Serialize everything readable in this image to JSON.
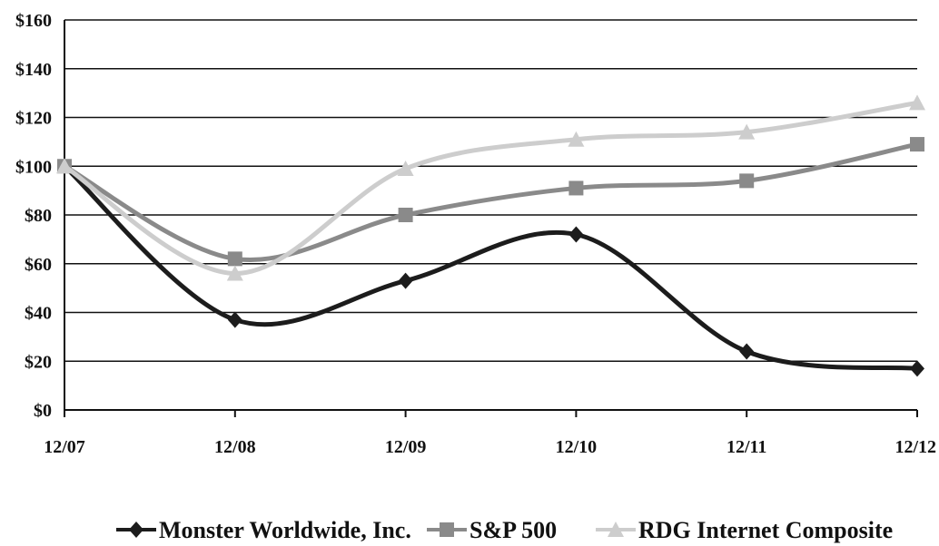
{
  "chart_data": {
    "type": "line",
    "categories": [
      "12/07",
      "12/08",
      "12/09",
      "12/10",
      "12/11",
      "12/12"
    ],
    "series": [
      {
        "name": "Monster Worldwide, Inc.",
        "values": [
          100,
          37,
          53,
          72,
          24,
          17
        ],
        "color": "#1c1c1c",
        "marker": "diamond"
      },
      {
        "name": "S&P 500",
        "values": [
          100,
          62,
          80,
          91,
          94,
          109
        ],
        "color": "#8a8a8a",
        "marker": "square"
      },
      {
        "name": "RDG Internet Composite",
        "values": [
          100,
          56,
          99,
          111,
          114,
          126
        ],
        "color": "#cdcdcd",
        "marker": "triangle"
      }
    ],
    "ylim": [
      0,
      160
    ],
    "yticks": [
      0,
      20,
      40,
      60,
      80,
      100,
      120,
      140,
      160
    ],
    "ytick_labels": [
      "$0",
      "$20",
      "$40",
      "$60",
      "$80",
      "$100",
      "$120",
      "$140",
      "$160"
    ],
    "grid": true,
    "smoothed": true,
    "legend_position": "bottom"
  }
}
